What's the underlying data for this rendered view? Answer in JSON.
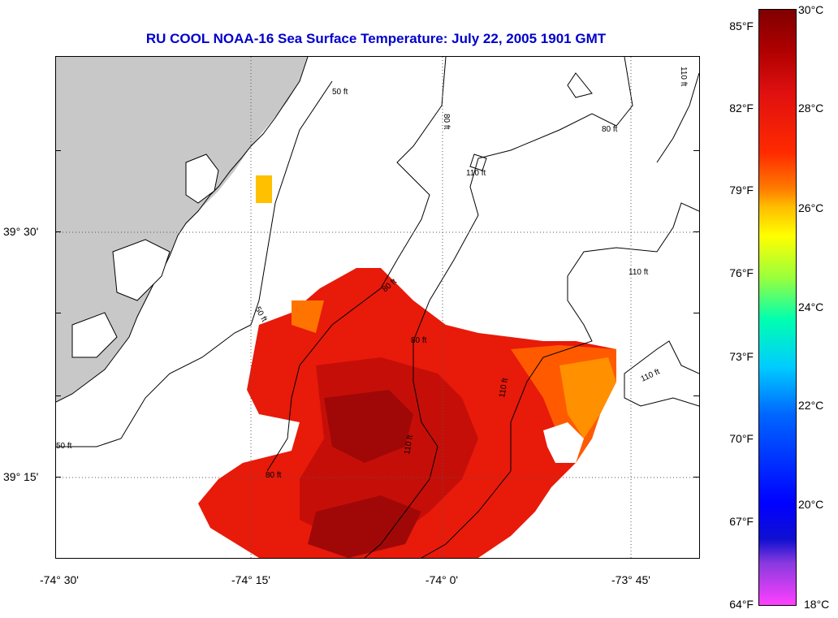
{
  "title": "RU COOL  NOAA-16  Sea Surface Temperature:  July 22, 2005 1901 GMT",
  "colors": {
    "land": "#c8c8c8",
    "title": "#0000cc"
  },
  "axes": {
    "lat_labels": [
      "39° 30'",
      "39° 15'"
    ],
    "lon_labels": [
      "-74° 30'",
      "-74° 15'",
      "-74° 0'",
      "-73° 45'"
    ]
  },
  "colorbar": {
    "fahrenheit": [
      "85°F",
      "82°F",
      "79°F",
      "76°F",
      "73°F",
      "70°F",
      "67°F",
      "64°F"
    ],
    "celsius": [
      "30°C",
      "28°C",
      "26°C",
      "24°C",
      "22°C",
      "20°C",
      "18°C"
    ]
  },
  "contour_labels": [
    {
      "text": "50 ft"
    },
    {
      "text": "80 ft"
    },
    {
      "text": "80 ft"
    },
    {
      "text": "110 ft"
    },
    {
      "text": "110 ft"
    },
    {
      "text": "110 ft"
    },
    {
      "text": "50 ft"
    },
    {
      "text": "80 ft"
    },
    {
      "text": "80 ft"
    },
    {
      "text": "110 ft"
    },
    {
      "text": "110 ft"
    },
    {
      "text": "50 ft"
    },
    {
      "text": "110 ft"
    },
    {
      "text": "80 ft"
    }
  ]
}
